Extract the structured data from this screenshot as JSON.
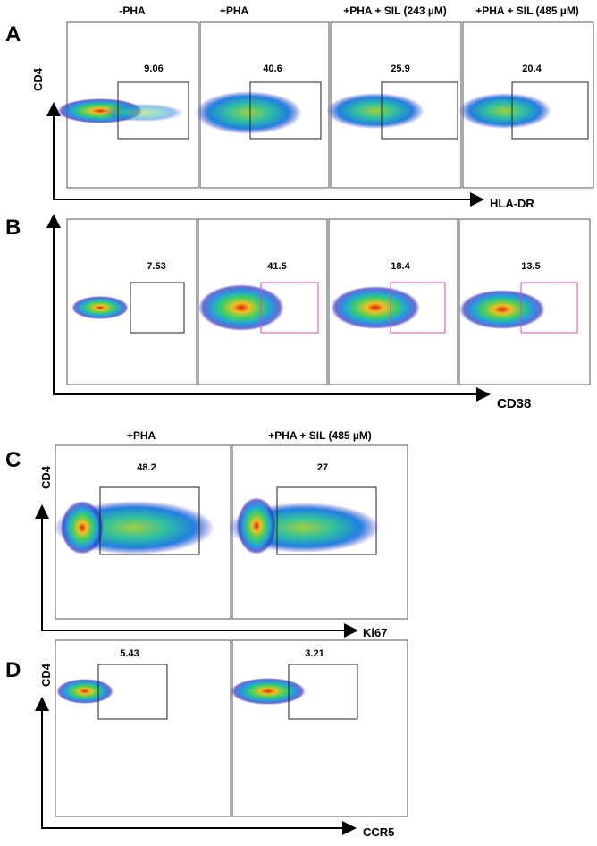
{
  "panels": [
    {
      "label": "A",
      "columns": [
        "-PHA",
        "+PHA",
        "+PHA + SIL (243 µM)",
        "+PHA + SIL (485 µM)"
      ],
      "gates": [
        "9.06",
        "40.6",
        "25.9",
        "20.4"
      ],
      "y_axis": "CD4",
      "x_axis": "HLA-DR"
    },
    {
      "label": "B",
      "gates": [
        "7.53",
        "41.5",
        "18.4",
        "13.5"
      ],
      "x_axis": "CD38"
    },
    {
      "label": "C",
      "columns": [
        "+PHA",
        "+PHA + SIL (485 µM)"
      ],
      "gates": [
        "48.2",
        "27"
      ],
      "y_axis": "CD4",
      "x_axis": "Ki67"
    },
    {
      "label": "D",
      "gates": [
        "5.43",
        "3.21"
      ],
      "y_axis": "CD4",
      "x_axis": "CCR5"
    }
  ]
}
